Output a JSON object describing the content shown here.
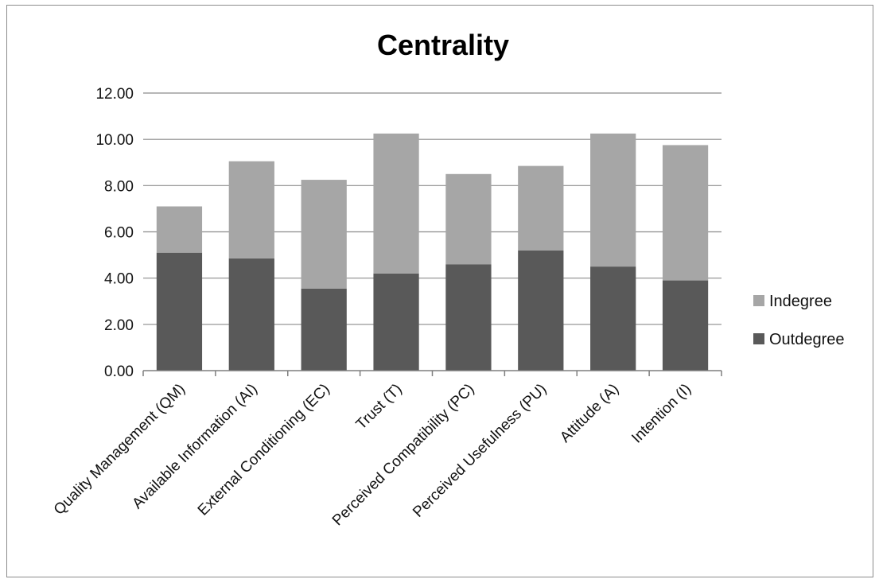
{
  "chart_data": {
    "type": "bar",
    "stacked": true,
    "title": "Centrality",
    "xlabel": "",
    "ylabel": "",
    "ylim": [
      0,
      12
    ],
    "y_ticks": [
      "0.00",
      "2.00",
      "4.00",
      "6.00",
      "8.00",
      "10.00",
      "12.00"
    ],
    "grid": true,
    "legend_position": "right",
    "categories": [
      "Quality Management (QM)",
      "Available Information (AI)",
      "External Conditioning (EC)",
      "Trust (T)",
      "Perceived Compatibility (PC)",
      "Perceived Usefulness (PU)",
      "Attitude (A)",
      "Intention (I)"
    ],
    "series": [
      {
        "name": "Outdegree",
        "color": "#595959",
        "values": [
          5.1,
          4.85,
          3.55,
          4.2,
          4.6,
          5.2,
          4.5,
          3.9
        ]
      },
      {
        "name": "Indegree",
        "color": "#a6a6a6",
        "values": [
          2.0,
          4.2,
          4.7,
          6.05,
          3.9,
          3.65,
          5.75,
          5.85
        ]
      }
    ],
    "legend_order": [
      "Indegree",
      "Outdegree"
    ]
  }
}
